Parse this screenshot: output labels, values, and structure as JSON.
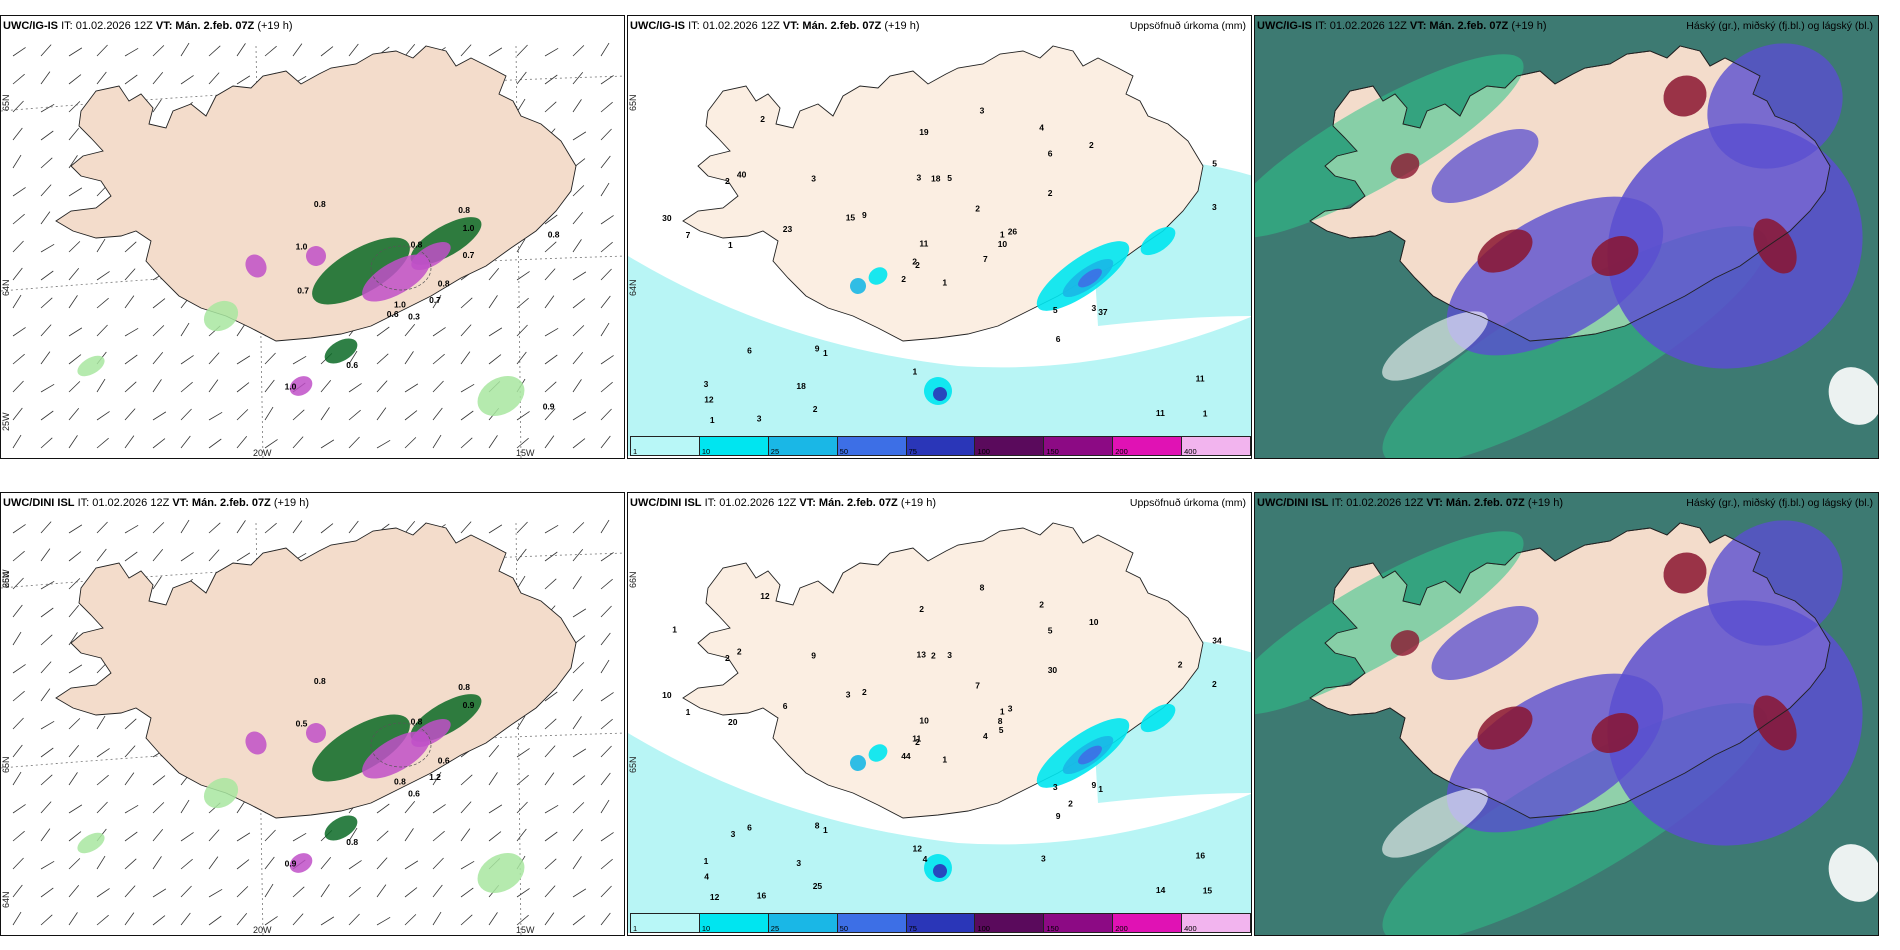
{
  "panels": {
    "p1": {
      "model": "UWC/IG-IS",
      "it": "IT: 01.02.2026 12Z",
      "vt_label": "VT:",
      "vt": "Mán. 2.feb. 07Z",
      "lead": "(+19 h)",
      "lat_labels": [
        "65N",
        "64N",
        "25W"
      ],
      "lon_labels": [
        "20W",
        "15W"
      ],
      "values": [
        "0.3",
        "1.0",
        "1.0",
        "1.0",
        "0.8",
        "0.6",
        "0.8",
        "0.8",
        "1.0",
        "0.7",
        "0.8",
        "0.9",
        "0.7",
        "0.8",
        "0.6",
        "0.7"
      ]
    },
    "p2": {
      "model": "UWC/IG-IS",
      "it": "IT: 01.02.2026 12Z",
      "vt_label": "VT:",
      "vt": "Mán. 2.feb. 07Z",
      "lead": "(+19 h)",
      "product": "Uppsöfnuð úrkoma (mm)",
      "lat_labels": [
        "65N",
        "64N"
      ],
      "values": [
        "1",
        "2",
        "2",
        "3",
        "1",
        "1",
        "4",
        "5",
        "6",
        "7",
        "2",
        "1",
        "1",
        "5",
        "2",
        "2",
        "3",
        "3",
        "2",
        "6",
        "9",
        "12",
        "18",
        "18",
        "26",
        "37",
        "40",
        "19",
        "7",
        "5",
        "3",
        "2",
        "1",
        "11",
        "3",
        "2",
        "9",
        "11",
        "11",
        "3",
        "3",
        "15",
        "23",
        "6",
        "2",
        "30",
        "10",
        "1"
      ]
    },
    "p3": {
      "model": "UWC/IG-IS",
      "it": "IT: 01.02.2026 12Z",
      "vt_label": "VT:",
      "vt": "Mán. 2.feb. 07Z",
      "lead": "(+19 h)",
      "product": "Háský (gr.), miðský (fj.bl.) og lágský (bl.)"
    },
    "p4": {
      "model": "UWC/DINI ISL",
      "it": "IT: 01.02.2026 12Z",
      "vt_label": "VT:",
      "vt": "Mán. 2.feb. 07Z",
      "lead": "(+19 h)",
      "lat_labels": [
        "66N",
        "65N",
        "64N",
        "25W"
      ],
      "lon_labels": [
        "20W",
        "15W"
      ],
      "values": [
        "0.6",
        "0.5",
        "0.8",
        "0.9",
        "0.6",
        "0.8",
        "0.8",
        "0.8",
        "0.9",
        "1.2",
        "0.8"
      ]
    },
    "p5": {
      "model": "UWC/DINI ISL",
      "it": "IT: 01.02.2026 12Z",
      "vt_label": "VT:",
      "vt": "Mán. 2.feb. 07Z",
      "lead": "(+19 h)",
      "product": "Uppsöfnuð úrkoma (mm)",
      "lat_labels": [
        "66N",
        "65N"
      ],
      "values": [
        "1",
        "2",
        "2",
        "1",
        "1",
        "1",
        "2",
        "3",
        "5",
        "4",
        "12",
        "15",
        "20",
        "34",
        "44",
        "30",
        "16",
        "13",
        "7",
        "6",
        "2",
        "4",
        "3",
        "2",
        "3",
        "1",
        "2",
        "2",
        "1",
        "3",
        "2",
        "11",
        "12",
        "10",
        "9",
        "10",
        "8",
        "14",
        "16",
        "9",
        "8",
        "3",
        "6",
        "9",
        "25",
        "10",
        "8",
        "12",
        "4",
        "5",
        "3",
        "2",
        "1",
        "2",
        "3"
      ]
    },
    "p6": {
      "model": "UWC/DINI ISL",
      "it": "IT: 01.02.2026 12Z",
      "vt_label": "VT:",
      "vt": "Mán. 2.feb. 07Z",
      "lead": "(+19 h)",
      "product": "Háský (gr.), miðský (fj.bl.) og lágský (bl.)"
    }
  },
  "colorbar": {
    "labels": [
      "1",
      "10",
      "25",
      "50",
      "75",
      "100",
      "150",
      "200",
      "400"
    ],
    "colors": [
      "#b8f7f7",
      "#00e5f0",
      "#1ab7e6",
      "#3d6fe6",
      "#2a36b8",
      "#5a0a5c",
      "#8c0a84",
      "#e012b4",
      "#f2b4ee"
    ]
  },
  "colors": {
    "land": "#f3dccb",
    "land_warm": "#e8d3c1",
    "sea": "#ffffff",
    "precip_light": "#b8f5f5",
    "snow_green": "#a8e6a0",
    "snow_dark": "#0b6a26",
    "mix_purple": "#c050c8",
    "cloud_high": "#3d7a72",
    "cloud_mid": "#5a4fd0",
    "cloud_low": "#8a1530",
    "cloud_green": "#2ec48a"
  }
}
